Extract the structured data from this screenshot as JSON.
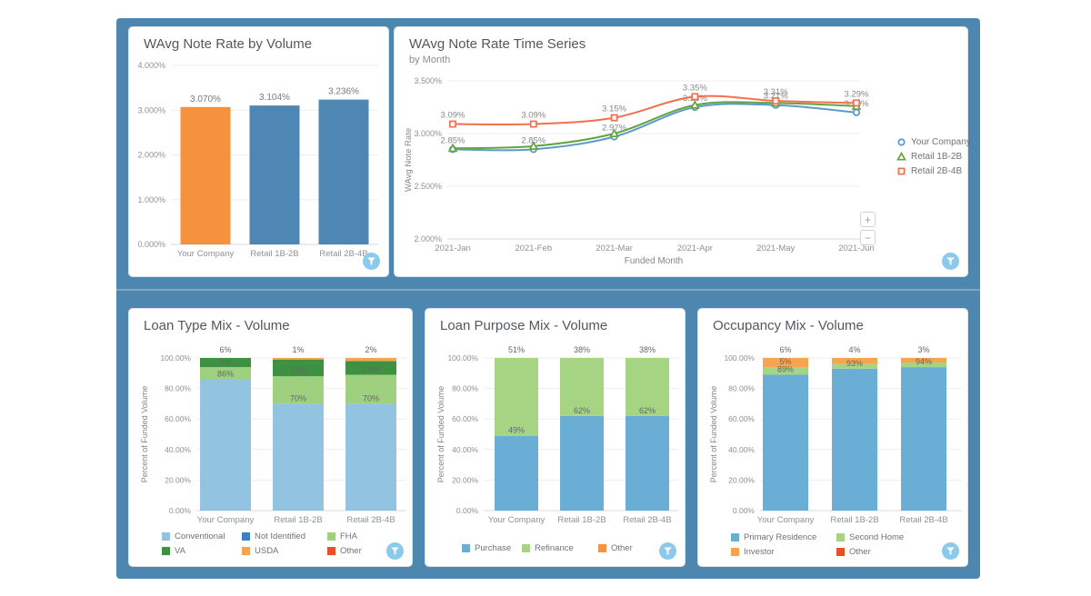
{
  "ui": {
    "zoom_in": "+",
    "zoom_out": "−",
    "filter_button_color": "#8ccaec",
    "panel_color": "#4d86ae"
  },
  "chart_data": [
    {
      "id": "wavg-note-rate-by-volume",
      "type": "bar",
      "title": "WAvg Note Rate by Volume",
      "categories": [
        "Your Company",
        "Retail 1B-2B",
        "Retail 2B-4B"
      ],
      "values": [
        3.07,
        3.104,
        3.236
      ],
      "value_labels": [
        "3.070%",
        "3.104%",
        "3.236%"
      ],
      "bar_colors": [
        "#f6913d",
        "#4e87b4",
        "#4e87b4"
      ],
      "ylim": [
        0,
        4
      ],
      "y_ticks": [
        "0.000%",
        "1.000%",
        "2.000%",
        "3.000%",
        "4.000%"
      ],
      "grid": true
    },
    {
      "id": "wavg-note-rate-time-series",
      "type": "line",
      "title": "WAvg Note Rate Time Series",
      "subtitle": "by Month",
      "xlabel": "Funded Month",
      "ylabel": "WAvg Note Rate",
      "x": [
        "2021-Jan",
        "2021-Feb",
        "2021-Mar",
        "2021-Apr",
        "2021-May",
        "2021-Jun"
      ],
      "ylim": [
        2.0,
        3.5
      ],
      "y_ticks": [
        "2.000%",
        "2.500%",
        "3.000%",
        "3.500%"
      ],
      "legend_position": "right",
      "series": [
        {
          "name": "Your Company",
          "color": "#5e9ac9",
          "marker": "circle",
          "values": [
            2.85,
            2.85,
            2.97,
            3.25,
            3.27,
            3.2
          ],
          "labels": [
            "2.85%",
            "2.85%",
            "2.97%",
            "3.25%",
            "3.27%",
            "3.20%"
          ]
        },
        {
          "name": "Retail 1B-2B",
          "color": "#62a343",
          "marker": "triangle",
          "values": [
            2.86,
            2.88,
            3.0,
            3.27,
            3.29,
            3.26
          ],
          "labels": [
            null,
            null,
            null,
            null,
            null,
            null
          ]
        },
        {
          "name": "Retail 2B-4B",
          "color": "#f3704e",
          "marker": "square",
          "values": [
            3.09,
            3.09,
            3.15,
            3.35,
            3.31,
            3.29
          ],
          "labels": [
            "3.09%",
            "3.09%",
            "3.15%",
            "3.35%",
            "3.31%",
            "3.29%"
          ]
        }
      ]
    },
    {
      "id": "loan-type-mix-volume",
      "type": "stacked_bar",
      "title": "Loan Type Mix - Volume",
      "ylabel": "Percent of Funded Volume",
      "categories": [
        "Your Company",
        "Retail 1B-2B",
        "Retail 2B-4B"
      ],
      "ylim": [
        0,
        100
      ],
      "y_ticks": [
        "0.00%",
        "20.00%",
        "40.00%",
        "60.00%",
        "80.00%",
        "100.00%"
      ],
      "series": [
        {
          "name": "Conventional",
          "color": "#92c3e0",
          "values": [
            86,
            70,
            70
          ],
          "labels": [
            "86%",
            "70%",
            "70%"
          ]
        },
        {
          "name": "Not Identified",
          "color": "#3b7fc4",
          "values": [
            0,
            0,
            0
          ],
          "labels": [
            null,
            null,
            null
          ]
        },
        {
          "name": "FHA",
          "color": "#9ed07f",
          "values": [
            8,
            18,
            19
          ],
          "labels": [
            "8%",
            "18%",
            "19%"
          ]
        },
        {
          "name": "VA",
          "color": "#3f9142",
          "values": [
            6,
            11,
            9
          ],
          "labels": [
            "6%",
            null,
            null
          ]
        },
        {
          "name": "USDA",
          "color": "#f5a54e",
          "values": [
            0,
            1,
            2
          ],
          "labels": [
            null,
            "1%",
            "2%"
          ]
        },
        {
          "name": "Other",
          "color": "#e8502a",
          "values": [
            0,
            0,
            0
          ],
          "labels": [
            null,
            null,
            null
          ]
        }
      ],
      "legend_rows": [
        [
          "Conventional",
          "Not Identified",
          "FHA"
        ],
        [
          "VA",
          "USDA",
          "Other"
        ]
      ]
    },
    {
      "id": "loan-purpose-mix-volume",
      "type": "stacked_bar",
      "title": "Loan Purpose Mix - Volume",
      "ylabel": "Percent of Funded Volume",
      "categories": [
        "Your Company",
        "Retail 1B-2B",
        "Retail 2B-4B"
      ],
      "ylim": [
        0,
        100
      ],
      "y_ticks": [
        "0.00%",
        "20.00%",
        "40.00%",
        "60.00%",
        "80.00%",
        "100.00%"
      ],
      "series": [
        {
          "name": "Purchase",
          "color": "#6aaed6",
          "values": [
            49,
            62,
            62
          ],
          "labels": [
            "49%",
            "62%",
            "62%"
          ]
        },
        {
          "name": "Refinance",
          "color": "#a5d483",
          "values": [
            51,
            38,
            38
          ],
          "labels": [
            "51%",
            "38%",
            "38%"
          ]
        },
        {
          "name": "Other",
          "color": "#f6913d",
          "values": [
            0,
            0,
            0
          ],
          "labels": [
            null,
            null,
            null
          ]
        }
      ],
      "legend_rows": [
        [
          "Purchase",
          "Refinance",
          "Other"
        ]
      ]
    },
    {
      "id": "occupancy-mix-volume",
      "type": "stacked_bar",
      "title": "Occupancy Mix - Volume",
      "ylabel": "Percent of Funded Volume",
      "categories": [
        "Your Company",
        "Retail 1B-2B",
        "Retail 2B-4B"
      ],
      "ylim": [
        0,
        100
      ],
      "y_ticks": [
        "0.00%",
        "20.00%",
        "40.00%",
        "60.00%",
        "80.00%",
        "100.00%"
      ],
      "series": [
        {
          "name": "Primary Residence",
          "color": "#6aaed6",
          "values": [
            89,
            93,
            94
          ],
          "labels": [
            "89%",
            "93%",
            "94%"
          ]
        },
        {
          "name": "Second Home",
          "color": "#a5d483",
          "values": [
            5,
            3,
            3
          ],
          "labels": [
            "5%",
            null,
            null
          ]
        },
        {
          "name": "Investor",
          "color": "#f5a54e",
          "values": [
            6,
            4,
            3
          ],
          "labels": [
            "6%",
            "4%",
            "3%"
          ]
        },
        {
          "name": "Other",
          "color": "#e8502a",
          "values": [
            0,
            0,
            0
          ],
          "labels": [
            null,
            null,
            null
          ]
        }
      ],
      "legend_rows": [
        [
          "Primary Residence",
          "Second Home"
        ],
        [
          "Investor",
          "Other"
        ]
      ]
    }
  ]
}
